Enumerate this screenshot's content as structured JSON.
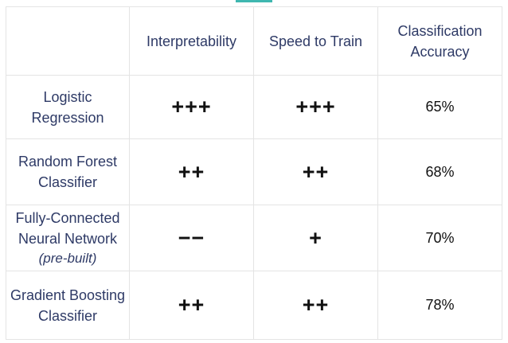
{
  "columns": [
    "",
    "Interpretability",
    "Speed to Train",
    "Classification Accuracy"
  ],
  "rows": [
    {
      "model": "Logistic Regression",
      "note": "",
      "interpretability": "+++",
      "speed": "+++",
      "accuracy": "65%"
    },
    {
      "model": "Random Forest Classifier",
      "note": "",
      "interpretability": "++",
      "speed": "++",
      "accuracy": "68%"
    },
    {
      "model": "Fully-Connected Neural Network",
      "note": "(pre-built)",
      "interpretability": "−−",
      "speed": "+",
      "accuracy": "70%"
    },
    {
      "model": "Gradient Boosting Classifier",
      "note": "",
      "interpretability": "++",
      "speed": "++",
      "accuracy": "78%"
    }
  ],
  "colors": {
    "header_text": "#2e3a66",
    "value_text": "#111111",
    "grid": "#e4e4e4",
    "accent": "#3fb7b0"
  }
}
